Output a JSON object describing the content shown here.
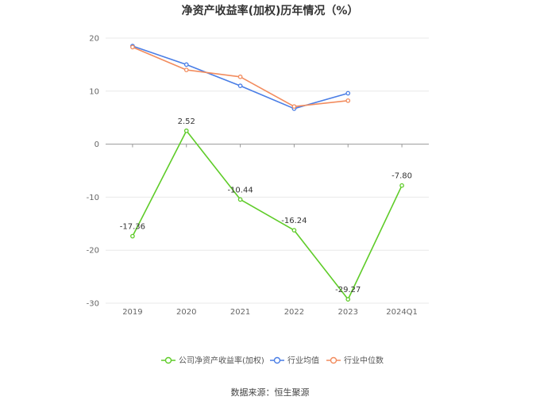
{
  "chart_data": {
    "type": "line",
    "title": "净资产收益率(加权)历年情况（%）",
    "categories": [
      "2019",
      "2020",
      "2021",
      "2022",
      "2023",
      "2024Q1"
    ],
    "y_ticks": [
      "20",
      "10",
      "0",
      "-10",
      "-20",
      "-30"
    ],
    "ylim": [
      -30,
      20
    ],
    "grid": true,
    "legend_position": "bottom",
    "series": [
      {
        "name": "公司净资产收益率(加权)",
        "color": "#5fcc29",
        "values": [
          -17.36,
          2.52,
          -10.44,
          -16.24,
          -29.27,
          -7.8
        ],
        "labels": [
          "-17.36",
          "2.52",
          "-10.44",
          "-16.24",
          "-29.27",
          "-7.80"
        ]
      },
      {
        "name": "行业均值",
        "color": "#4a7ee6",
        "values": [
          18.5,
          15.0,
          11.0,
          6.7,
          9.6,
          null
        ]
      },
      {
        "name": "行业中位数",
        "color": "#f28c5e",
        "values": [
          18.3,
          14.0,
          12.7,
          7.1,
          8.2,
          null
        ]
      }
    ]
  },
  "footer": {
    "source": "数据来源：恒生聚源"
  }
}
